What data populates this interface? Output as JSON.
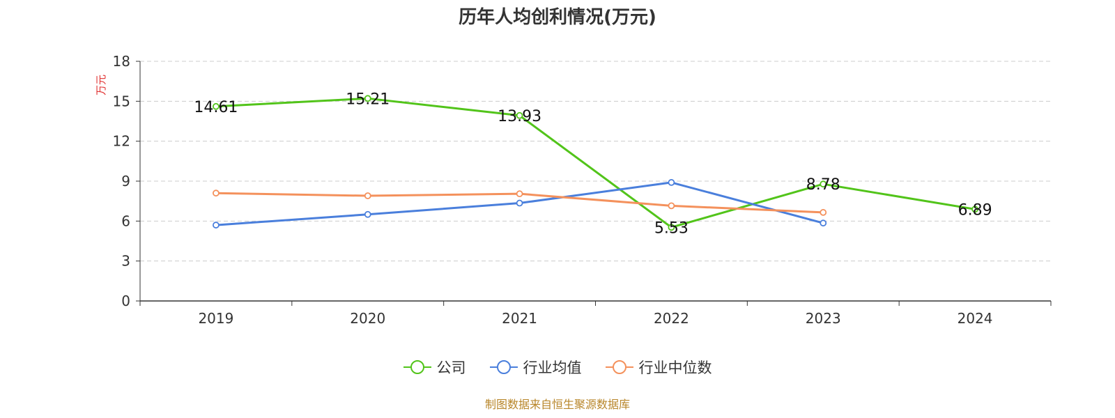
{
  "chart_data": {
    "type": "line",
    "title": "历年人均创利情况(万元)",
    "ylabel": "万元",
    "xlabel": "",
    "categories": [
      "2019",
      "2020",
      "2021",
      "2022",
      "2023",
      "2024"
    ],
    "ylim": [
      0,
      18
    ],
    "yticks": [
      0,
      3,
      6,
      9,
      12,
      15,
      18
    ],
    "grid": true,
    "legend": "bottom-center",
    "series": [
      {
        "name": "公司",
        "color": "#52c41a",
        "values": [
          14.61,
          15.21,
          13.93,
          5.53,
          8.78,
          6.89
        ],
        "labels": [
          "14.61",
          "15.21",
          "13.93",
          "5.53",
          "8.78",
          "6.89"
        ]
      },
      {
        "name": "行业均值",
        "color": "#4a7fdc",
        "values": [
          5.7,
          6.5,
          7.35,
          8.9,
          5.85,
          null
        ]
      },
      {
        "name": "行业中位数",
        "color": "#f4915c",
        "values": [
          8.1,
          7.9,
          8.05,
          7.15,
          6.65,
          null
        ]
      }
    ]
  },
  "source": "制图数据来自恒生聚源数据库"
}
